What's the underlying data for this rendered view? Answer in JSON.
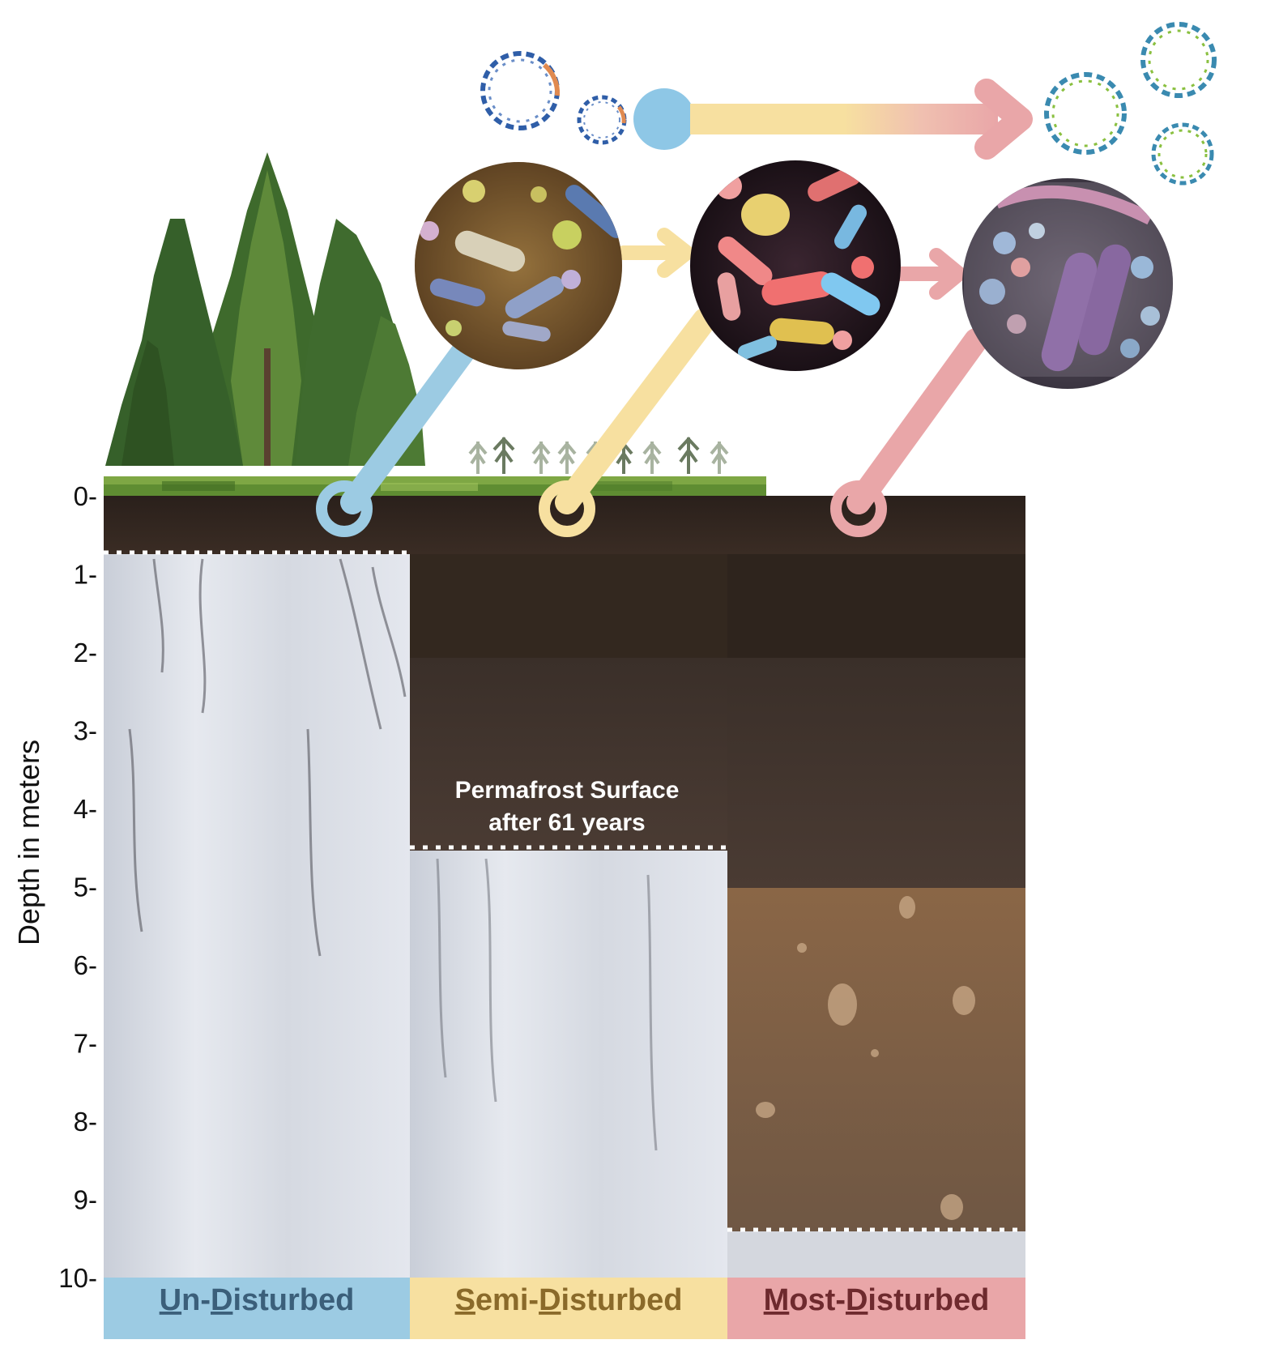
{
  "axis": {
    "label": "Depth in meters",
    "ticks": [
      "0-",
      "1-",
      "2-",
      "3-",
      "4-",
      "5-",
      "6-",
      "7-",
      "8-",
      "9-",
      "10-"
    ]
  },
  "annotation": {
    "line1": "Permafrost Surface",
    "line2": "after 61 years"
  },
  "categories": [
    {
      "key": "un",
      "first": "U",
      "mid1": "n-",
      "second": "D",
      "rest": "isturbed",
      "color": "#9ccbe3",
      "text_color": "#3b5f7a"
    },
    {
      "key": "semi",
      "first": "S",
      "mid1": "emi-",
      "second": "D",
      "rest": "isturbed",
      "color": "#f7e0a0",
      "text_color": "#8a6a2a"
    },
    {
      "key": "most",
      "first": "M",
      "mid1": "ost-",
      "second": "D",
      "rest": "isturbed",
      "color": "#e9a6a8",
      "text_color": "#6e2a2e"
    }
  ],
  "colors": {
    "blue": "#9ccbe3",
    "yellow": "#f7e0a0",
    "pink": "#e9a6a8",
    "soil_dark": "#2e2420",
    "permafrost": "#dfe3ea",
    "mineral_soil": "#7d5f45"
  }
}
